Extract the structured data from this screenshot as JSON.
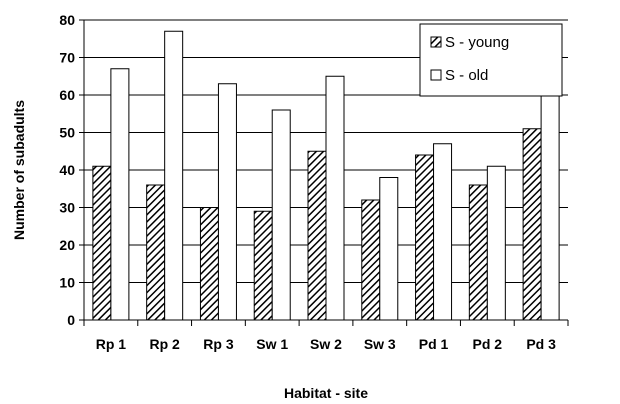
{
  "chart_data": {
    "type": "bar",
    "categories": [
      "Rp 1",
      "Rp 2",
      "Rp 3",
      "Sw 1",
      "Sw 2",
      "Sw 3",
      "Pd 1",
      "Pd 2",
      "Pd 3"
    ],
    "series": [
      {
        "name": "S - young",
        "values": [
          41,
          36,
          30,
          29,
          45,
          32,
          44,
          36,
          51
        ],
        "pattern": "diagonal-hatch"
      },
      {
        "name": "S - old",
        "values": [
          67,
          77,
          63,
          56,
          65,
          38,
          47,
          41,
          72
        ],
        "pattern": "white"
      }
    ],
    "title": "",
    "xlabel": "Habitat - site",
    "ylabel": "Number of subadults",
    "ylim": [
      0,
      80
    ],
    "yticks": [
      0,
      10,
      20,
      30,
      40,
      50,
      60,
      70,
      80
    ],
    "grid": true,
    "legend_position": "top-right",
    "colors": {
      "bar_outline": "#000000",
      "grid": "#000000",
      "fill_old": "#ffffff",
      "hatch": "#000000"
    }
  }
}
